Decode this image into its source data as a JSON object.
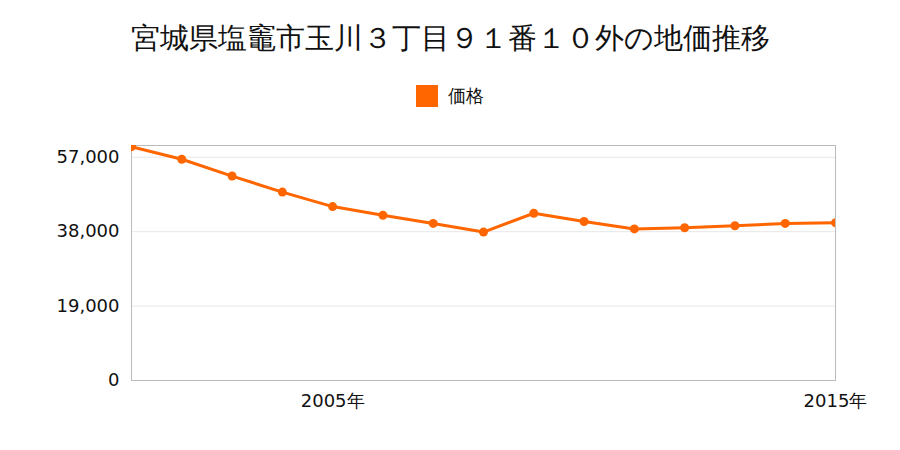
{
  "chart_data": {
    "type": "line",
    "title": "宮城県塩竈市玉川３丁目９１番１０外の地価推移",
    "x": [
      2001,
      2002,
      2003,
      2004,
      2005,
      2006,
      2007,
      2008,
      2009,
      2010,
      2011,
      2012,
      2013,
      2014,
      2015
    ],
    "series": [
      {
        "name": "価格",
        "color": "#ff6600",
        "marker": "circle",
        "line_style": "solid",
        "values": [
          59700,
          56500,
          52200,
          48100,
          44400,
          42200,
          40100,
          37900,
          42700,
          40600,
          38700,
          39000,
          39500,
          40100,
          40300
        ]
      }
    ],
    "xlim": [
      2001,
      2015
    ],
    "xticks": [
      {
        "value": 2005,
        "label": "2005年"
      },
      {
        "value": 2015,
        "label": "2015年"
      }
    ],
    "ylim": [
      0,
      60000
    ],
    "yticks": [
      0,
      {
        "value": 19000,
        "label": "19,000"
      },
      {
        "value": 38000,
        "label": "38,000"
      },
      {
        "value": 57000,
        "label": "57,000"
      }
    ],
    "grid": true,
    "legend": "top"
  }
}
